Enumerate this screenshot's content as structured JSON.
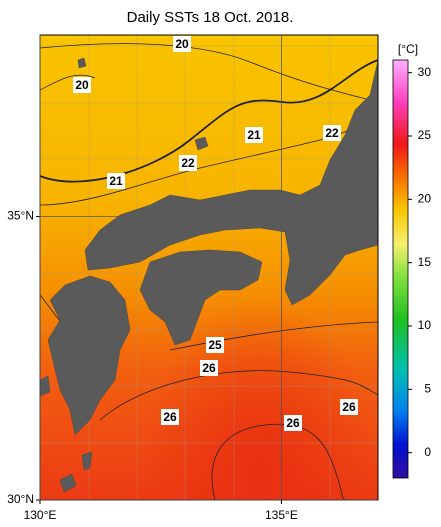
{
  "title": "Daily SSTs 18 Oct. 2018.",
  "map": {
    "lat_range": [
      30,
      38.2
    ],
    "lon_range": [
      130,
      137
    ],
    "lat_ticks": [
      {
        "value": 30,
        "label": "30°N"
      },
      {
        "value": 35,
        "label": "35°N"
      }
    ],
    "lon_ticks": [
      {
        "value": 130,
        "label": "130°E"
      },
      {
        "value": 135,
        "label": "135°E"
      }
    ]
  },
  "contour_labels": [
    "20",
    "20",
    "21",
    "22",
    "22",
    "21",
    "25",
    "26",
    "26",
    "26",
    "26"
  ],
  "colorbar": {
    "unit": "[°C]",
    "range": [
      -2,
      31
    ],
    "ticks": [
      0,
      5,
      10,
      15,
      20,
      25,
      30
    ]
  }
}
